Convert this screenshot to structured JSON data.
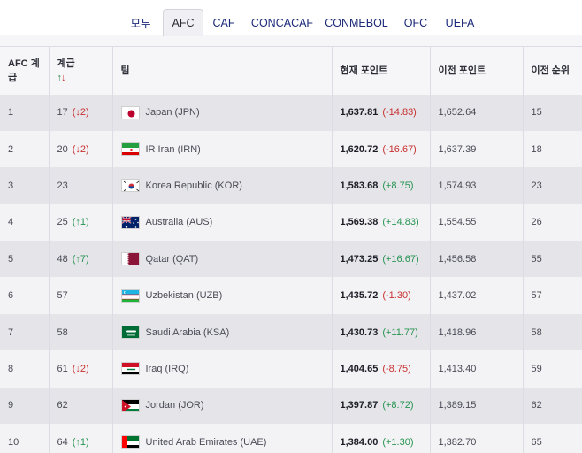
{
  "tabs": [
    "모두",
    "AFC",
    "CAF",
    "CONCACAF",
    "CONMEBOL",
    "OFC",
    "UEFA"
  ],
  "active_tab": "AFC",
  "columns": {
    "afc_rank": "AFC 계급",
    "rank": "계급",
    "team": "팀",
    "current_points": "현재 포인트",
    "previous_points": "이전 포인트",
    "previous_rank": "이전 순위"
  },
  "sort_icon": {
    "up": "↑",
    "down": "↓"
  },
  "rows": [
    {
      "afc_rank": "1",
      "rank": "17",
      "move": "(↓2)",
      "move_dir": "down",
      "team": "Japan (JPN)",
      "flag": "japan-flag-icon",
      "points": "1,637.81",
      "change": "(-14.83)",
      "change_dir": "neg",
      "prev_points": "1,652.64",
      "prev_rank": "15"
    },
    {
      "afc_rank": "2",
      "rank": "20",
      "move": "(↓2)",
      "move_dir": "down",
      "team": "IR Iran (IRN)",
      "flag": "iran-flag-icon",
      "points": "1,620.72",
      "change": "(-16.67)",
      "change_dir": "neg",
      "prev_points": "1,637.39",
      "prev_rank": "18"
    },
    {
      "afc_rank": "3",
      "rank": "23",
      "move": "",
      "move_dir": "",
      "team": "Korea Republic (KOR)",
      "flag": "korea-flag-icon",
      "points": "1,583.68",
      "change": "(+8.75)",
      "change_dir": "pos",
      "prev_points": "1,574.93",
      "prev_rank": "23"
    },
    {
      "afc_rank": "4",
      "rank": "25",
      "move": "(↑1)",
      "move_dir": "up",
      "team": "Australia (AUS)",
      "flag": "australia-flag-icon",
      "points": "1,569.38",
      "change": "(+14.83)",
      "change_dir": "pos",
      "prev_points": "1,554.55",
      "prev_rank": "26"
    },
    {
      "afc_rank": "5",
      "rank": "48",
      "move": "(↑7)",
      "move_dir": "up",
      "team": "Qatar (QAT)",
      "flag": "qatar-flag-icon",
      "points": "1,473.25",
      "change": "(+16.67)",
      "change_dir": "pos",
      "prev_points": "1,456.58",
      "prev_rank": "55"
    },
    {
      "afc_rank": "6",
      "rank": "57",
      "move": "",
      "move_dir": "",
      "team": "Uzbekistan (UZB)",
      "flag": "uzbekistan-flag-icon",
      "points": "1,435.72",
      "change": "(-1.30)",
      "change_dir": "neg",
      "prev_points": "1,437.02",
      "prev_rank": "57"
    },
    {
      "afc_rank": "7",
      "rank": "58",
      "move": "",
      "move_dir": "",
      "team": "Saudi Arabia (KSA)",
      "flag": "saudi-arabia-flag-icon",
      "points": "1,430.73",
      "change": "(+11.77)",
      "change_dir": "pos",
      "prev_points": "1,418.96",
      "prev_rank": "58"
    },
    {
      "afc_rank": "8",
      "rank": "61",
      "move": "(↓2)",
      "move_dir": "down",
      "team": "Iraq (IRQ)",
      "flag": "iraq-flag-icon",
      "points": "1,404.65",
      "change": "(-8.75)",
      "change_dir": "neg",
      "prev_points": "1,413.40",
      "prev_rank": "59"
    },
    {
      "afc_rank": "9",
      "rank": "62",
      "move": "",
      "move_dir": "",
      "team": "Jordan (JOR)",
      "flag": "jordan-flag-icon",
      "points": "1,397.87",
      "change": "(+8.72)",
      "change_dir": "pos",
      "prev_points": "1,389.15",
      "prev_rank": "62"
    },
    {
      "afc_rank": "10",
      "rank": "64",
      "move": "(↑1)",
      "move_dir": "up",
      "team": "United Arab Emirates (UAE)",
      "flag": "uae-flag-icon",
      "points": "1,384.00",
      "change": "(+1.30)",
      "change_dir": "pos",
      "prev_points": "1,382.70",
      "prev_rank": "65"
    }
  ],
  "colors": {
    "tab_text": "#1c2a7a",
    "negative": "#c8302f",
    "positive": "#269450",
    "row_odd": "#e4e4e9",
    "row_even": "#f3f3f6"
  }
}
